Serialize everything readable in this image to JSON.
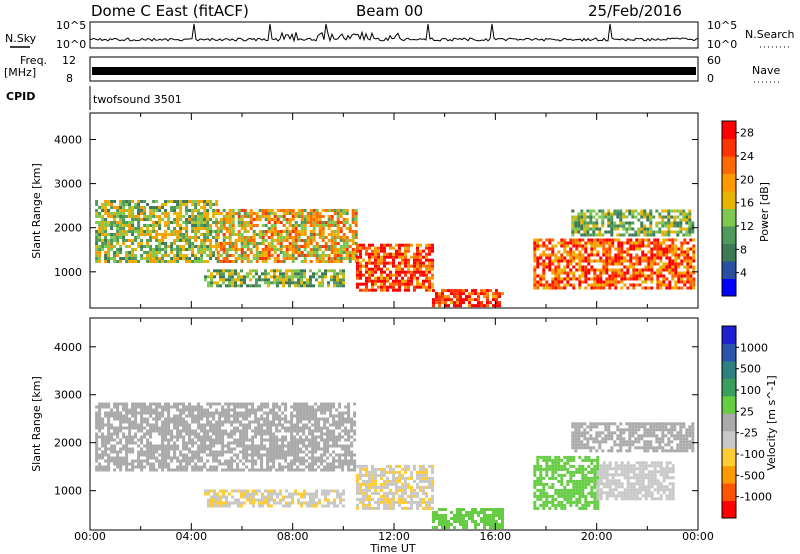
{
  "header": {
    "radar": "Dome C East (fitACF)",
    "beam": "Beam 00",
    "date": "25/Feb/2016"
  },
  "strip": {
    "nsky_label": "N.Sky",
    "nsky_ticks": [
      "10^5",
      "10^0"
    ],
    "nsearch_label": "N.Search",
    "nsearch_ticks_right": [
      "10^5",
      "10^0"
    ],
    "freq_label": "Freq.",
    "freq_unit": "[MHz]",
    "freq_ticks": [
      "12",
      "8"
    ],
    "nave_label": "Nave",
    "nave_ticks": [
      "60",
      "0"
    ],
    "cpid_label": "CPID",
    "cpid_value": "twofsound 3501"
  },
  "colors": {
    "power": [
      "#0000ff",
      "#2a4fa0",
      "#3c7a56",
      "#4f9a5a",
      "#7ec850",
      "#e8b400",
      "#ff9900",
      "#ff6a00",
      "#ff3300",
      "#ff0000"
    ],
    "velocity": [
      "#ff0000",
      "#ff5500",
      "#ff9900",
      "#ffcc33",
      "#c8c8c8",
      "#aaaaaa",
      "#66cc44",
      "#3a9e5c",
      "#2f7f7f",
      "#2a55a8",
      "#2020d0"
    ]
  },
  "chart_data": [
    {
      "type": "heatmap",
      "name": "power",
      "xlabel": "",
      "ylabel": "Slant Range [km]",
      "xlim": [
        0,
        24
      ],
      "ylim": [
        180,
        4600
      ],
      "x_ticks": [
        "00:00",
        "04:00",
        "08:00",
        "12:00",
        "16:00",
        "20:00",
        "00:00"
      ],
      "y_ticks": [
        1000,
        2000,
        3000,
        4000
      ],
      "colorbar": {
        "label": "Power [dB]",
        "ticks": [
          "4",
          "8",
          "12",
          "16",
          "20",
          "24",
          "28"
        ],
        "range": [
          0,
          30
        ]
      },
      "regions": [
        {
          "t0": 0.2,
          "t1": 5.0,
          "r0": 1200,
          "r1": 2600,
          "value": 14
        },
        {
          "t0": 5.0,
          "t1": 10.5,
          "r0": 1200,
          "r1": 2400,
          "value": 18
        },
        {
          "t0": 4.5,
          "t1": 10.0,
          "r0": 650,
          "r1": 1000,
          "value": 12
        },
        {
          "t0": 10.5,
          "t1": 13.5,
          "r0": 550,
          "r1": 1600,
          "value": 26
        },
        {
          "t0": 13.5,
          "t1": 16.3,
          "r0": 200,
          "r1": 600,
          "value": 27
        },
        {
          "t0": 17.5,
          "t1": 23.8,
          "r0": 600,
          "r1": 1700,
          "value": 24
        },
        {
          "t0": 19.0,
          "t1": 23.8,
          "r0": 1800,
          "r1": 2400,
          "value": 12
        }
      ]
    },
    {
      "type": "heatmap",
      "name": "velocity",
      "xlabel": "Time UT",
      "ylabel": "Slant Range [km]",
      "xlim": [
        0,
        24
      ],
      "ylim": [
        180,
        4600
      ],
      "x_ticks": [
        "00:00",
        "04:00",
        "08:00",
        "12:00",
        "16:00",
        "20:00",
        "00:00"
      ],
      "y_ticks": [
        1000,
        2000,
        3000,
        4000
      ],
      "colorbar": {
        "label": "Velocity [m s^-1]",
        "ticks": [
          "1000",
          "500",
          "100",
          "25",
          "-25",
          "-100",
          "-500",
          "-1000"
        ],
        "range": [
          -1200,
          1200
        ]
      },
      "regions": [
        {
          "t0": 0.2,
          "t1": 10.5,
          "r0": 1400,
          "r1": 2800,
          "value": 0
        },
        {
          "t0": 4.5,
          "t1": 10.0,
          "r0": 650,
          "r1": 1000,
          "value": -300
        },
        {
          "t0": 10.5,
          "t1": 13.5,
          "r0": 600,
          "r1": 1500,
          "value": -300
        },
        {
          "t0": 13.5,
          "t1": 16.3,
          "r0": 200,
          "r1": 600,
          "value": 150
        },
        {
          "t0": 17.5,
          "t1": 20.0,
          "r0": 600,
          "r1": 1700,
          "value": 200
        },
        {
          "t0": 20.0,
          "t1": 23.0,
          "r0": 800,
          "r1": 1600,
          "value": -250
        },
        {
          "t0": 19.0,
          "t1": 23.8,
          "r0": 1800,
          "r1": 2400,
          "value": 0
        }
      ]
    }
  ]
}
